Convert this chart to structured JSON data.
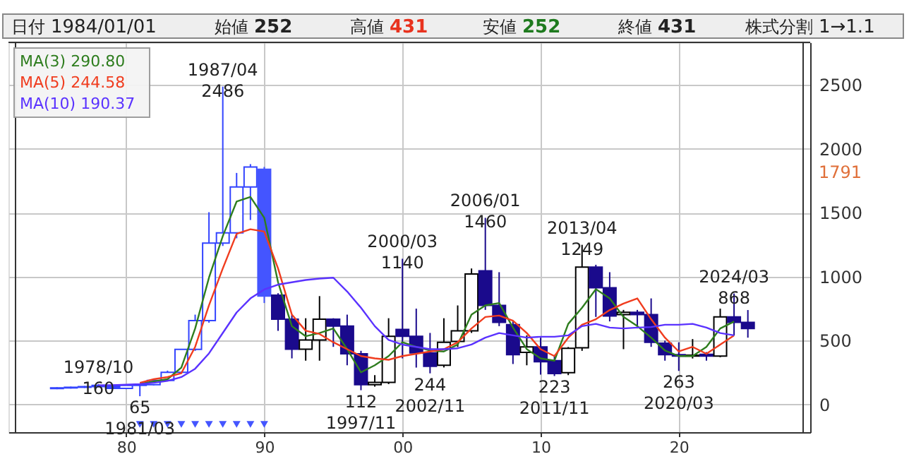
{
  "chart_data": {
    "type": "candlestick",
    "annotations": [
      "日付 1984/01/01",
      "始値 252",
      "高値 431",
      "安値 252",
      "終値 431",
      "株式分割 1→1.1",
      {
        "text": "1978/10\n160",
        "x": 1978,
        "y": 160
      },
      {
        "text": "65\n1981/03",
        "x": 1981,
        "y": 65
      },
      {
        "text": "1987/04\n2486",
        "x": 1987,
        "y": 2486
      },
      {
        "text": "112\n1997/11",
        "x": 1997,
        "y": 112
      },
      {
        "text": "2000/03\n1140",
        "x": 2000,
        "y": 1140
      },
      {
        "text": "244\n2002/11",
        "x": 2002,
        "y": 244
      },
      {
        "text": "2006/01\n1460",
        "x": 2006,
        "y": 1460
      },
      {
        "text": "223\n2011/11",
        "x": 2011,
        "y": 223
      },
      {
        "text": "2013/04\n1249",
        "x": 2013,
        "y": 1249
      },
      {
        "text": "263\n2020/03",
        "x": 2020,
        "y": 263
      },
      {
        "text": "2024/03\n868",
        "x": 2024,
        "y": 868
      },
      "1791"
    ],
    "x": [
      1975,
      1976,
      1977,
      1978,
      1979,
      1980,
      1981,
      1982,
      1983,
      1984,
      1985,
      1986,
      1987,
      1988,
      1989,
      1990,
      1991,
      1992,
      1993,
      1994,
      1995,
      1996,
      1997,
      1998,
      1999,
      2000,
      2001,
      2002,
      2003,
      2004,
      2005,
      2006,
      2007,
      2008,
      2009,
      2010,
      2011,
      2012,
      2013,
      2014,
      2015,
      2016,
      2017,
      2018,
      2019,
      2020,
      2021,
      2022,
      2023,
      2024,
      2025
    ],
    "ohlc": [
      [
        125,
        135,
        120,
        130
      ],
      [
        130,
        140,
        125,
        135
      ],
      [
        135,
        145,
        130,
        140
      ],
      [
        140,
        160,
        135,
        150
      ],
      [
        150,
        155,
        120,
        126
      ],
      [
        126,
        155,
        120,
        150
      ],
      [
        150,
        160,
        65,
        155
      ],
      [
        155,
        195,
        150,
        189
      ],
      [
        189,
        265,
        185,
        252
      ],
      [
        252,
        431,
        252,
        431
      ],
      [
        431,
        703,
        420,
        656
      ],
      [
        656,
        1504,
        640,
        1262
      ],
      [
        1262,
        2486,
        1240,
        1342
      ],
      [
        1342,
        1811,
        1300,
        1702
      ],
      [
        1702,
        1880,
        1443,
        1858
      ],
      [
        1840,
        1858,
        794,
        848
      ],
      [
        855,
        870,
        577,
        667
      ],
      [
        667,
        700,
        361,
        433
      ],
      [
        433,
        675,
        343,
        505
      ],
      [
        505,
        848,
        343,
        667
      ],
      [
        667,
        675,
        451,
        613
      ],
      [
        613,
        703,
        307,
        397
      ],
      [
        397,
        420,
        112,
        155
      ],
      [
        155,
        230,
        140,
        173
      ],
      [
        173,
        675,
        160,
        534
      ],
      [
        588,
        1140,
        361,
        534
      ],
      [
        534,
        750,
        289,
        404
      ],
      [
        404,
        560,
        244,
        299
      ],
      [
        307,
        675,
        290,
        487
      ],
      [
        494,
        775,
        450,
        577
      ],
      [
        577,
        1064,
        560,
        1021
      ],
      [
        1046,
        1460,
        740,
        775
      ],
      [
        775,
        1035,
        613,
        642
      ],
      [
        624,
        650,
        317,
        390
      ],
      [
        408,
        541,
        307,
        451
      ],
      [
        451,
        523,
        234,
        335
      ],
      [
        343,
        380,
        223,
        242
      ],
      [
        249,
        450,
        230,
        440
      ],
      [
        444,
        1249,
        420,
        1075
      ],
      [
        1075,
        1093,
        685,
        913
      ],
      [
        913,
        1035,
        650,
        693
      ],
      [
        703,
        740,
        433,
        721
      ],
      [
        721,
        740,
        595,
        703
      ],
      [
        703,
        830,
        451,
        487
      ],
      [
        480,
        500,
        343,
        390
      ],
      [
        390,
        487,
        263,
        379
      ],
      [
        379,
        512,
        360,
        386
      ],
      [
        393,
        410,
        343,
        379
      ],
      [
        379,
        750,
        370,
        685
      ],
      [
        685,
        868,
        540,
        642
      ],
      [
        642,
        739,
        523,
        595
      ]
    ],
    "colors": [
      "#3344ff",
      "#3344ff",
      "#3344ff",
      "#3344ff",
      "#3344ff",
      "#3344ff",
      "#3344ff",
      "#3344ff",
      "#3344ff",
      "#3344ff",
      "#3344ff",
      "#3344ff",
      "#3344ff",
      "#3344ff",
      "#3344ff",
      "#4455ff",
      "#1a0a8c",
      "#1a0a8c",
      "#000000",
      "#000000",
      "#1a0a8c",
      "#1a0a8c",
      "#1a0a8c",
      "#000000",
      "#000000",
      "#1a0a8c",
      "#1a0a8c",
      "#1a0a8c",
      "#000000",
      "#000000",
      "#000000",
      "#1a0a8c",
      "#1a0a8c",
      "#1a0a8c",
      "#000000",
      "#1a0a8c",
      "#1a0a8c",
      "#000000",
      "#000000",
      "#1a0a8c",
      "#1a0a8c",
      "#000000",
      "#1a0a8c",
      "#1a0a8c",
      "#1a0a8c",
      "#1a0a8c",
      "#000000",
      "#1a0a8c",
      "#000000",
      "#1a0a8c",
      "#1a0a8c"
    ],
    "series": [
      {
        "name": "MA(3) 290.80",
        "type": "line",
        "color": "#2e7d1e",
        "x": [
          1981,
          1982,
          1983,
          1984,
          1985,
          1986,
          1987,
          1988,
          1989,
          1990,
          1991,
          1992,
          1993,
          1994,
          1995,
          1996,
          1997,
          1998,
          1999,
          2000,
          2001,
          2002,
          2003,
          2004,
          2005,
          2006,
          2007,
          2008,
          2009,
          2010,
          2011,
          2012,
          2013,
          2014,
          2015,
          2016,
          2017,
          2018,
          2019,
          2020,
          2021,
          2022,
          2023,
          2024
        ],
        "values": [
          162,
          180,
          198,
          289,
          595,
          992,
          1317,
          1587,
          1623,
          1461,
          956,
          613,
          534,
          559,
          595,
          433,
          252,
          307,
          379,
          487,
          451,
          422,
          415,
          469,
          703,
          775,
          794,
          602,
          433,
          361,
          343,
          631,
          757,
          902,
          830,
          685,
          613,
          523,
          422,
          379,
          379,
          451,
          595,
          649
        ]
      },
      {
        "name": "MA(5) 244.58",
        "type": "line",
        "color": "#f03c1e",
        "x": [
          1981,
          1982,
          1983,
          1984,
          1985,
          1986,
          1987,
          1988,
          1989,
          1990,
          1991,
          1992,
          1993,
          1994,
          1995,
          1996,
          1997,
          1998,
          1999,
          2000,
          2001,
          2002,
          2003,
          2004,
          2005,
          2006,
          2007,
          2008,
          2009,
          2010,
          2011,
          2012,
          2013,
          2014,
          2015,
          2016,
          2017,
          2018,
          2019,
          2020,
          2021,
          2022,
          2023,
          2024
        ],
        "values": [
          170,
          198,
          215,
          245,
          451,
          776,
          1064,
          1335,
          1371,
          1353,
          1064,
          703,
          577,
          552,
          487,
          433,
          379,
          361,
          350,
          379,
          397,
          415,
          433,
          487,
          595,
          685,
          696,
          656,
          559,
          433,
          379,
          523,
          624,
          667,
          739,
          790,
          830,
          667,
          523,
          415,
          451,
          397,
          469,
          541
        ]
      },
      {
        "name": "MA(10) 190.37",
        "type": "line",
        "color": "#5a32ff",
        "x": [
          1978,
          1979,
          1980,
          1981,
          1982,
          1983,
          1984,
          1985,
          1986,
          1987,
          1988,
          1989,
          1990,
          1991,
          1992,
          1993,
          1994,
          1995,
          1996,
          1997,
          1998,
          1999,
          2000,
          2001,
          2002,
          2003,
          2004,
          2005,
          2006,
          2007,
          2008,
          2009,
          2010,
          2011,
          2012,
          2013,
          2014,
          2015,
          2016,
          2017,
          2018,
          2019,
          2020,
          2021,
          2022,
          2023,
          2024
        ],
        "values": [
          150,
          152,
          155,
          160,
          170,
          185,
          215,
          280,
          400,
          560,
          720,
          830,
          900,
          938,
          956,
          974,
          985,
          992,
          884,
          757,
          613,
          505,
          469,
          451,
          433,
          433,
          440,
          469,
          523,
          559,
          541,
          523,
          530,
          530,
          541,
          613,
          631,
          602,
          595,
          602,
          606,
          624,
          624,
          631,
          602,
          559,
          541
        ]
      },
      {
        "type": "scatter",
        "marker": "triangle",
        "color": "#4455ff",
        "x": [
          1981,
          1982,
          1983,
          1984,
          1985,
          1986,
          1987,
          1988,
          1989,
          1990
        ],
        "values": [
          -155,
          -155,
          -155,
          -155,
          -155,
          -155,
          -155,
          -155,
          -155,
          -155
        ]
      }
    ],
    "xlim": [
      1972,
      2029
    ],
    "ylim": [
      -216,
      2832
    ],
    "xticks": [
      {
        "value": 1980,
        "label": "80"
      },
      {
        "value": 1990,
        "label": "90"
      },
      {
        "value": 2000,
        "label": "00"
      },
      {
        "value": 2010,
        "label": "10"
      },
      {
        "value": 2020,
        "label": "20"
      }
    ],
    "yticks": [
      0,
      500,
      1000,
      1500,
      2000,
      2500
    ],
    "grid": true,
    "legend": "top left"
  }
}
